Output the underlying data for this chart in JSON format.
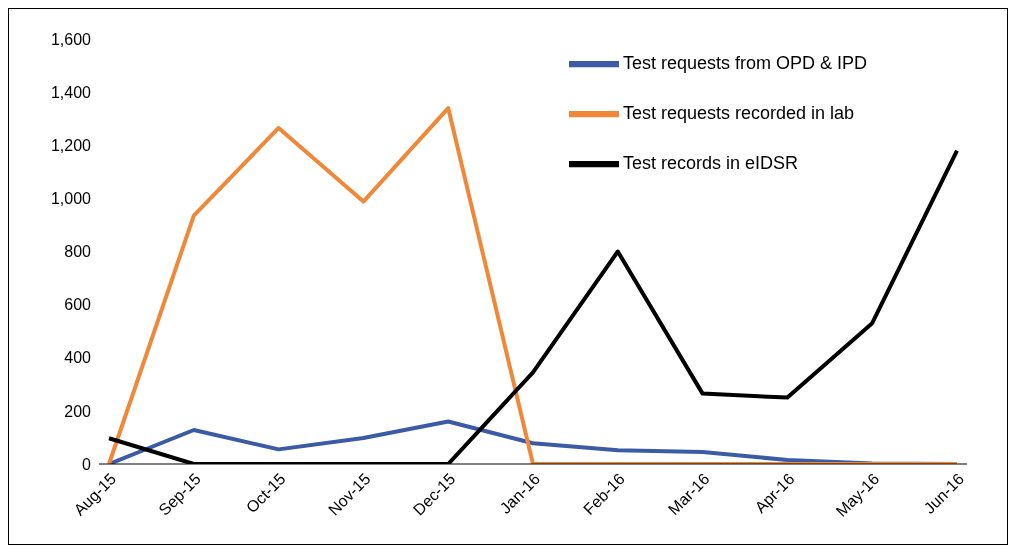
{
  "chart_data": {
    "type": "line",
    "categories": [
      "Aug-15",
      "Sep-15",
      "Oct-15",
      "Nov-15",
      "Dec-15",
      "Jan-16",
      "Feb-16",
      "Mar-16",
      "Apr-16",
      "May-16",
      "Jun-16"
    ],
    "series": [
      {
        "name": "Test requests from OPD & IPD",
        "color": "#3b5ba5",
        "values": [
          0,
          128,
          55,
          98,
          160,
          78,
          52,
          45,
          15,
          2,
          0
        ]
      },
      {
        "name": "Test requests recorded in lab",
        "color": "#f0883a",
        "values": [
          0,
          935,
          1265,
          988,
          1340,
          0,
          0,
          0,
          0,
          0,
          0
        ]
      },
      {
        "name": "Test records in eIDSR",
        "color": "#000000",
        "values": [
          97,
          0,
          0,
          0,
          0,
          345,
          800,
          265,
          250,
          530,
          1180
        ]
      }
    ],
    "ylim": [
      0,
      1600
    ],
    "yticks": [
      0,
      {
        "value": 200,
        "label": "200"
      },
      {
        "value": 400,
        "label": "400"
      },
      {
        "value": 600,
        "label": "600"
      },
      {
        "value": 800,
        "label": "800"
      },
      {
        "value": 1000,
        "label": "1,000"
      },
      {
        "value": 1200,
        "label": "1,200"
      },
      {
        "value": 1400,
        "label": "1,400"
      },
      {
        "value": 1600,
        "label": "1,600"
      }
    ],
    "grid": false,
    "legend": "top right",
    "marker": "none",
    "line_style": "solid"
  }
}
